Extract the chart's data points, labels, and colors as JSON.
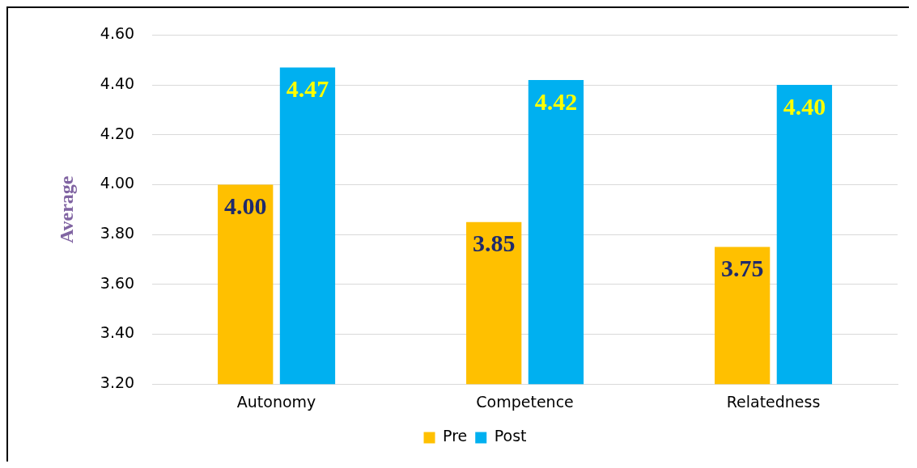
{
  "chart_data": {
    "type": "bar",
    "ylabel": "Average",
    "categories": [
      "Autonomy",
      "Competence",
      "Relatedness"
    ],
    "series": [
      {
        "name": "Pre",
        "color": "#ffc000",
        "values": [
          4.0,
          3.85,
          3.75
        ],
        "value_labels": [
          "4.00",
          "3.85",
          "3.75"
        ]
      },
      {
        "name": "Post",
        "color": "#00b0f0",
        "values": [
          4.47,
          4.42,
          4.4
        ],
        "value_labels": [
          "4.47",
          "4.42",
          "4.40"
        ]
      }
    ],
    "ylim": [
      3.2,
      4.6
    ],
    "yticks": [
      {
        "value": 3.2,
        "label": "3.20"
      },
      {
        "value": 3.4,
        "label": "3.40"
      },
      {
        "value": 3.6,
        "label": "3.60"
      },
      {
        "value": 3.8,
        "label": "3.80"
      },
      {
        "value": 4.0,
        "label": "4.00"
      },
      {
        "value": 4.2,
        "label": "4.20"
      },
      {
        "value": 4.4,
        "label": "4.40"
      },
      {
        "value": 4.6,
        "label": "4.60"
      }
    ],
    "grid": "y",
    "legend": "bottom"
  }
}
